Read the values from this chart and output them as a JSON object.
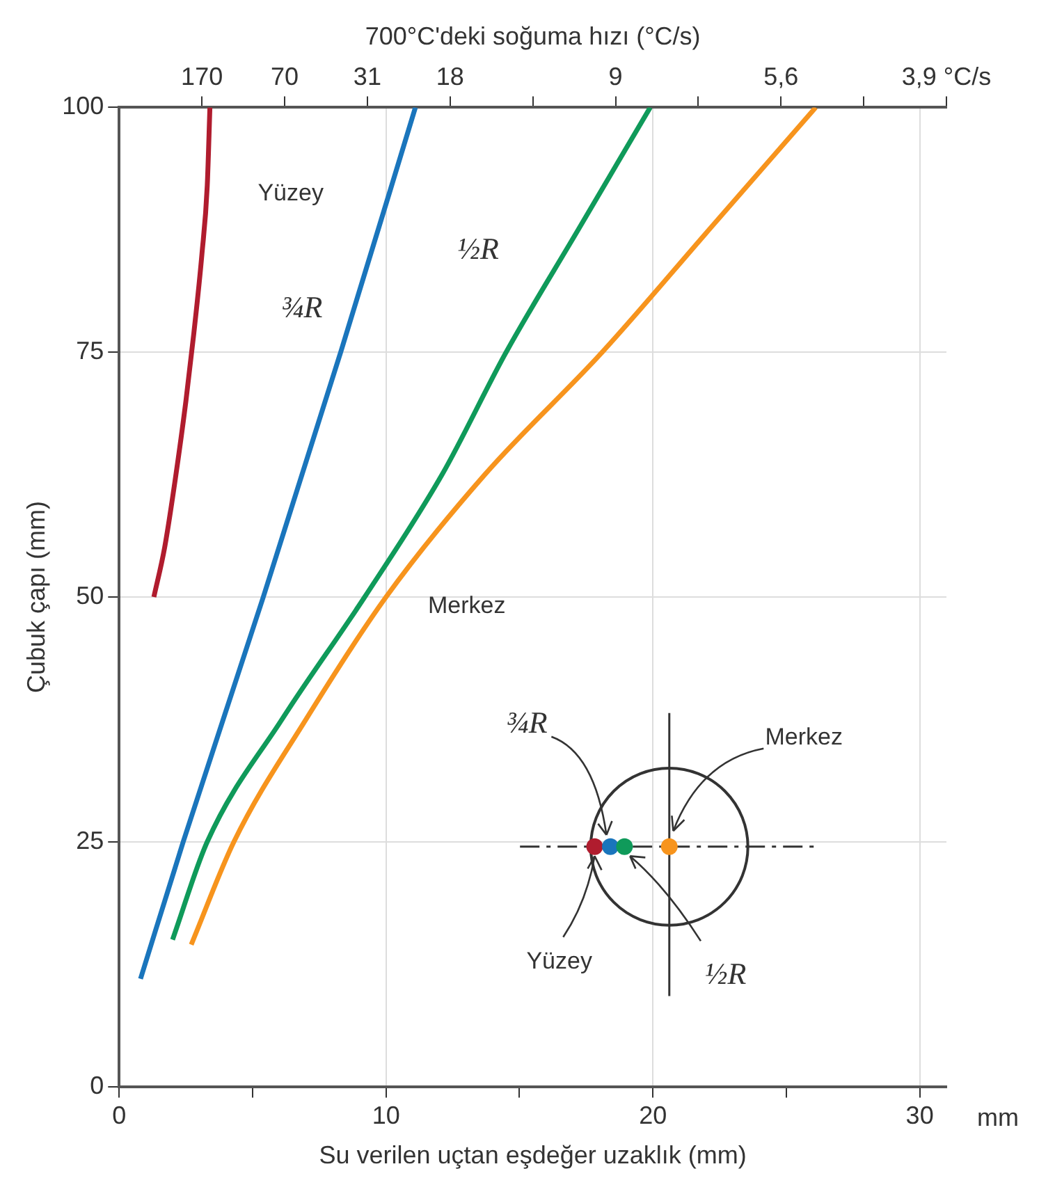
{
  "chart_data": {
    "type": "line",
    "x2label": "700°C'deki soğuma hızı (°C/s)",
    "xlabel": "Su verilen uçtan eşdeğer uzaklık (mm)",
    "ylabel": "Çubuk çapı (mm)",
    "annotations": [
      "mm",
      "¾R",
      "Merkez",
      "Yüzey",
      "½R",
      "170",
      "70",
      "31",
      "18",
      "9",
      "5,6",
      "3,9 °C/s"
    ],
    "xlim": [
      0,
      31
    ],
    "xticks": [
      0,
      {
        "value": 5,
        "label": null
      },
      10,
      {
        "value": 15,
        "label": null
      },
      20,
      {
        "value": 25,
        "label": null
      },
      30
    ],
    "ylim": [
      0,
      100
    ],
    "yticks": [
      0,
      25,
      50,
      75,
      100
    ],
    "grid": true,
    "legend": false,
    "marker": "none",
    "line_style": "solid",
    "series": [
      {
        "name": "Yüzey",
        "color": "#b01c2e",
        "x": [
          1.3,
          1.7,
          2.1,
          2.5,
          2.8,
          3.1,
          3.3,
          3.4
        ],
        "values": [
          50,
          55,
          62,
          70,
          77,
          85,
          92,
          100
        ]
      },
      {
        "name": "¾R",
        "color": "#1a75bc",
        "x": [
          0.8,
          2.4,
          5.4,
          8.3,
          11.1
        ],
        "values": [
          11,
          25,
          50,
          75,
          100
        ]
      },
      {
        "name": "½R",
        "color": "#0f9a5a",
        "x": [
          2.0,
          3.3,
          6.1,
          9.2,
          12.1,
          14.5,
          17.2,
          19.9
        ],
        "values": [
          15,
          25,
          37.5,
          50,
          62.5,
          75,
          87.5,
          100
        ]
      },
      {
        "name": "Merkez",
        "color": "#f7941d",
        "x": [
          2.7,
          4.3,
          7.0,
          10.0,
          13.7,
          18.1,
          22.1,
          26.1
        ],
        "values": [
          14.5,
          25,
          37.5,
          50,
          62.5,
          75,
          87.5,
          100
        ]
      }
    ]
  }
}
